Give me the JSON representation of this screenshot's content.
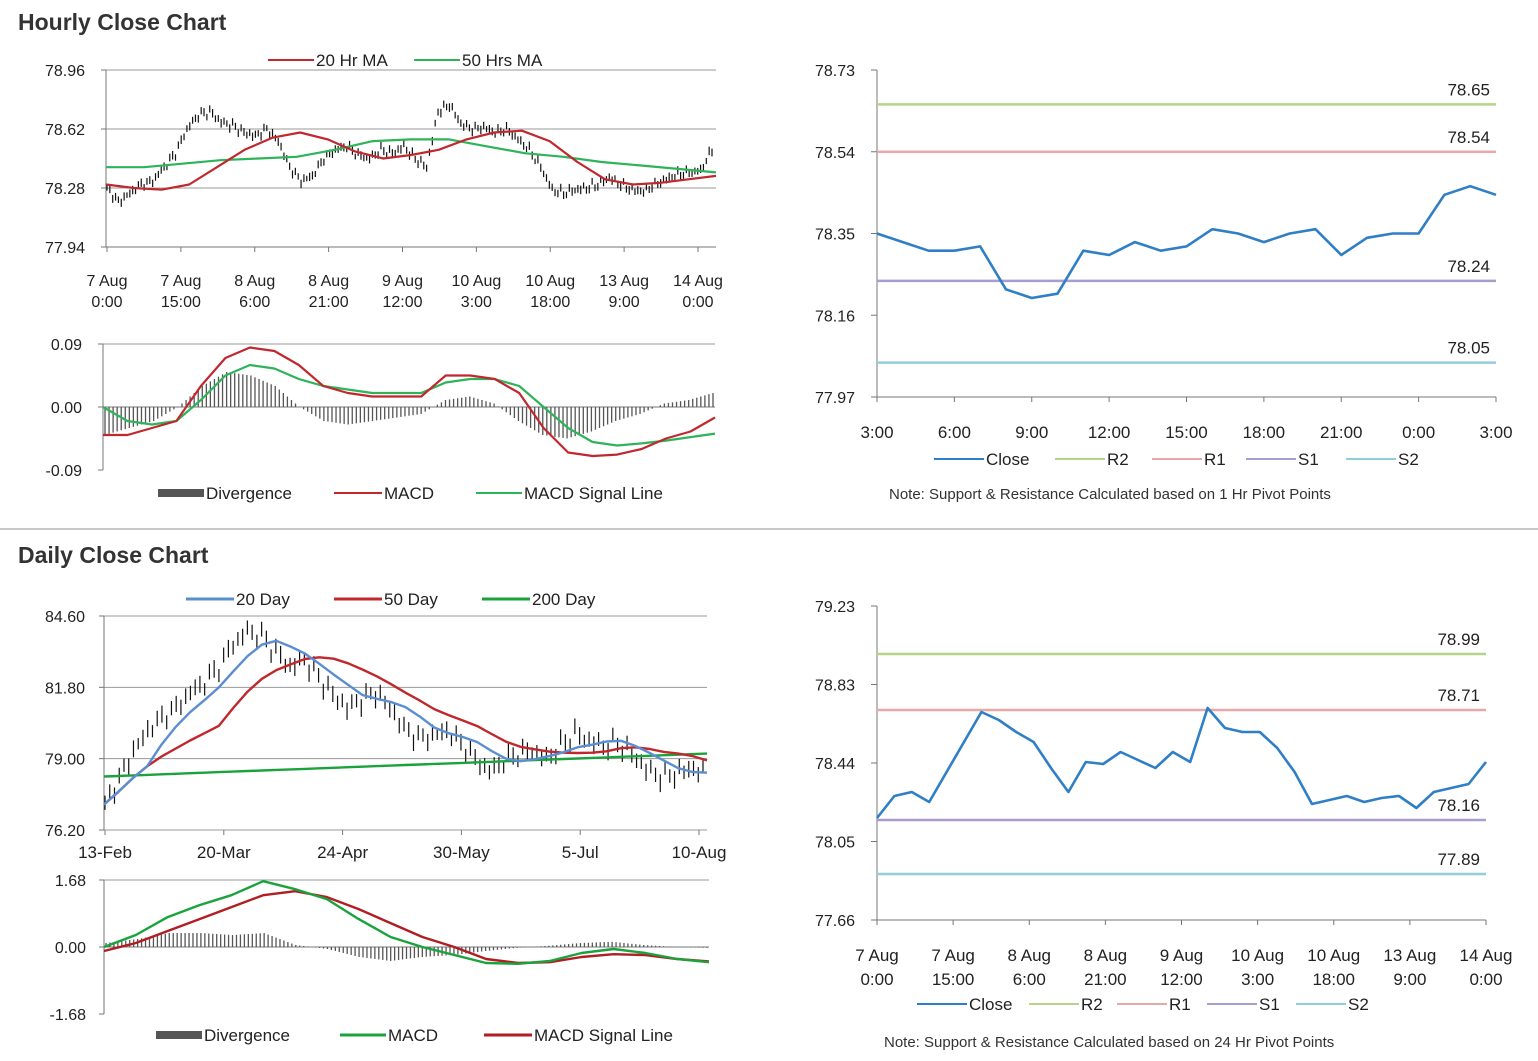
{
  "sections": {
    "hourly_title": "Hourly Close Chart",
    "daily_title": "Daily Close Chart"
  },
  "notes": {
    "hourly": "Note: Support & Resistance Calculated based on 1 Hr Pivot Points",
    "daily": "Note: Support & Resistance Calculated based on 24 Hr Pivot Points"
  },
  "chart_data": [
    {
      "id": "hourly_price",
      "type": "line",
      "ylim": [
        77.94,
        78.96
      ],
      "yticks": [
        "78.96",
        "78.62",
        "78.28",
        "77.94"
      ],
      "xticks": [
        [
          "7 Aug",
          "0:00"
        ],
        [
          "7 Aug",
          "15:00"
        ],
        [
          "8 Aug",
          "6:00"
        ],
        [
          "8 Aug",
          "21:00"
        ],
        [
          "9 Aug",
          "12:00"
        ],
        [
          "10 Aug",
          "3:00"
        ],
        [
          "10 Aug",
          "18:00"
        ],
        [
          "13 Aug",
          "9:00"
        ],
        [
          "14 Aug",
          "0:00"
        ]
      ],
      "legend": [
        "20 Hr MA",
        "50 Hrs MA"
      ],
      "colors": {
        "ma_short": "#c0282d",
        "ma_long": "#2eb35a",
        "price": "#111111"
      },
      "price": [
        78.28,
        78.2,
        78.25,
        78.3,
        78.32,
        78.4,
        78.48,
        78.62,
        78.7,
        78.72,
        78.66,
        78.64,
        78.6,
        78.58,
        78.62,
        78.55,
        78.4,
        78.32,
        78.35,
        78.45,
        78.5,
        78.52,
        78.47,
        78.45,
        78.5,
        78.48,
        78.52,
        78.45,
        78.4,
        78.72,
        78.76,
        78.65,
        78.62,
        78.63,
        78.6,
        78.62,
        78.56,
        78.5,
        78.4,
        78.27,
        78.25,
        78.27,
        78.28,
        78.3,
        78.34,
        78.3,
        78.27,
        78.26,
        78.3,
        78.33,
        78.36,
        78.37,
        78.38,
        78.5
      ],
      "ma_short": [
        78.3,
        78.28,
        78.27,
        78.3,
        78.4,
        78.5,
        78.57,
        78.6,
        78.56,
        78.49,
        78.45,
        78.47,
        78.5,
        78.56,
        78.6,
        78.61,
        78.55,
        78.43,
        78.33,
        78.3,
        78.31,
        78.33,
        78.35
      ],
      "ma_long": [
        78.4,
        78.4,
        78.42,
        78.44,
        78.45,
        78.46,
        78.5,
        78.55,
        78.56,
        78.56,
        78.52,
        78.48,
        78.46,
        78.43,
        78.41,
        78.39,
        78.37
      ]
    },
    {
      "id": "hourly_macd",
      "type": "line",
      "ylim": [
        -0.09,
        0.09
      ],
      "yticks": [
        "0.09",
        "0.00",
        "-0.09"
      ],
      "legend": [
        "Divergence",
        "MACD",
        "MACD Signal Line"
      ],
      "colors": {
        "divergence": "#555555",
        "macd": "#c0282d",
        "signal": "#2eb35a"
      },
      "macd": [
        -0.04,
        -0.04,
        -0.03,
        -0.02,
        0.03,
        0.07,
        0.085,
        0.08,
        0.06,
        0.03,
        0.02,
        0.015,
        0.015,
        0.015,
        0.045,
        0.045,
        0.04,
        0.02,
        -0.03,
        -0.065,
        -0.07,
        -0.068,
        -0.06,
        -0.045,
        -0.035,
        -0.015
      ],
      "signal": [
        0.0,
        -0.02,
        -0.025,
        -0.02,
        0.01,
        0.045,
        0.06,
        0.055,
        0.04,
        0.03,
        0.025,
        0.02,
        0.02,
        0.02,
        0.035,
        0.04,
        0.04,
        0.03,
        0.0,
        -0.03,
        -0.05,
        -0.055,
        -0.052,
        -0.048,
        -0.043,
        -0.038
      ],
      "divergence": [
        -0.04,
        -0.03,
        -0.02,
        0.0,
        0.03,
        0.05,
        0.045,
        0.03,
        0.0,
        -0.02,
        -0.025,
        -0.02,
        -0.015,
        -0.01,
        0.01,
        0.015,
        0.005,
        -0.02,
        -0.04,
        -0.045,
        -0.035,
        -0.02,
        -0.01,
        0.005,
        0.01,
        0.02
      ]
    },
    {
      "id": "hourly_pivots",
      "type": "line",
      "ylim": [
        77.97,
        78.73
      ],
      "yticks": [
        "78.73",
        "78.54",
        "78.35",
        "78.16",
        "77.97"
      ],
      "xticks": [
        "3:00",
        "6:00",
        "9:00",
        "12:00",
        "15:00",
        "18:00",
        "21:00",
        "0:00",
        "3:00"
      ],
      "legend": [
        "Close",
        "R2",
        "R1",
        "S1",
        "S2"
      ],
      "levels": {
        "R2": 78.65,
        "R1": 78.54,
        "S1": 78.24,
        "S2": 78.05
      },
      "colors": {
        "close": "#2f7fc6",
        "R2": "#b5d48a",
        "R1": "#e8a8a8",
        "S1": "#a99ccf",
        "S2": "#92cddc"
      },
      "close": [
        78.35,
        78.33,
        78.31,
        78.31,
        78.32,
        78.22,
        78.2,
        78.21,
        78.31,
        78.3,
        78.33,
        78.31,
        78.32,
        78.36,
        78.35,
        78.33,
        78.35,
        78.36,
        78.3,
        78.34,
        78.35,
        78.35,
        78.44,
        78.46,
        78.44
      ]
    },
    {
      "id": "daily_price",
      "type": "line",
      "ylim": [
        76.2,
        84.6
      ],
      "yticks": [
        "84.60",
        "81.80",
        "79.00",
        "76.20"
      ],
      "xticks": [
        "13-Feb",
        "20-Mar",
        "24-Apr",
        "30-May",
        "5-Jul",
        "10-Aug"
      ],
      "legend": [
        "20 Day",
        "50 Day",
        "200 Day"
      ],
      "colors": {
        "ma20": "#5b8ed0",
        "ma50": "#c0282d",
        "ma200": "#1aa33c",
        "price": "#111111"
      },
      "price": [
        77.2,
        78.2,
        79.3,
        80.1,
        80.6,
        81.0,
        81.6,
        82.0,
        82.6,
        83.5,
        84.0,
        83.8,
        83.2,
        82.6,
        82.9,
        82.2,
        81.5,
        81.0,
        81.3,
        81.6,
        81.0,
        80.2,
        79.8,
        79.9,
        80.1,
        79.6,
        79.0,
        78.5,
        78.9,
        79.2,
        79.3,
        79.0,
        79.5,
        80.0,
        79.7,
        79.5,
        79.6,
        79.2,
        78.6,
        78.3,
        78.4,
        78.6,
        78.5
      ]
    },
    {
      "id": "daily_macd",
      "type": "line",
      "ylim": [
        -1.68,
        1.68
      ],
      "yticks": [
        "1.68",
        "0.00",
        "-1.68"
      ],
      "legend": [
        "Divergence",
        "MACD",
        "MACD Signal Line"
      ],
      "colors": {
        "divergence": "#555555",
        "macd": "#1aa33c",
        "signal": "#b01e23"
      },
      "macd": [
        0.0,
        0.3,
        0.75,
        1.05,
        1.3,
        1.65,
        1.45,
        1.2,
        0.7,
        0.25,
        0.0,
        -0.2,
        -0.4,
        -0.42,
        -0.35,
        -0.15,
        -0.05,
        -0.15,
        -0.3,
        -0.38
      ],
      "signal": [
        -0.1,
        0.1,
        0.4,
        0.7,
        1.0,
        1.3,
        1.4,
        1.25,
        0.95,
        0.6,
        0.25,
        0.0,
        -0.3,
        -0.4,
        -0.38,
        -0.25,
        -0.18,
        -0.2,
        -0.3,
        -0.36
      ],
      "divergence": [
        0.1,
        0.2,
        0.35,
        0.35,
        0.3,
        0.35,
        0.05,
        -0.05,
        -0.25,
        -0.35,
        -0.25,
        -0.2,
        -0.1,
        -0.02,
        0.03,
        0.1,
        0.13,
        0.05,
        0.0,
        -0.02
      ]
    },
    {
      "id": "daily_pivots",
      "type": "line",
      "ylim": [
        77.66,
        79.23
      ],
      "yticks": [
        "79.23",
        "78.83",
        "78.44",
        "78.05",
        "77.66"
      ],
      "xticks": [
        [
          "7 Aug",
          "0:00"
        ],
        [
          "7 Aug",
          "15:00"
        ],
        [
          "8 Aug",
          "6:00"
        ],
        [
          "8 Aug",
          "21:00"
        ],
        [
          "9 Aug",
          "12:00"
        ],
        [
          "10 Aug",
          "3:00"
        ],
        [
          "10 Aug",
          "18:00"
        ],
        [
          "13 Aug",
          "9:00"
        ],
        [
          "14 Aug",
          "0:00"
        ]
      ],
      "legend": [
        "Close",
        "R2",
        "R1",
        "S1",
        "S2"
      ],
      "levels": {
        "R2": 78.99,
        "R1": 78.71,
        "S1": 78.16,
        "S2": 77.89
      },
      "colors": {
        "close": "#2f7fc6",
        "R2": "#b5d48a",
        "R1": "#e8a8a8",
        "S1": "#a99ccf",
        "S2": "#92cddc"
      },
      "close": [
        78.17,
        78.28,
        78.3,
        78.25,
        78.4,
        78.55,
        78.7,
        78.66,
        78.6,
        78.55,
        78.42,
        78.3,
        78.45,
        78.44,
        78.5,
        78.46,
        78.42,
        78.5,
        78.45,
        78.72,
        78.62,
        78.6,
        78.6,
        78.52,
        78.4,
        78.24,
        78.26,
        78.28,
        78.25,
        78.27,
        78.28,
        78.22,
        78.3,
        78.32,
        78.34,
        78.45
      ]
    }
  ]
}
